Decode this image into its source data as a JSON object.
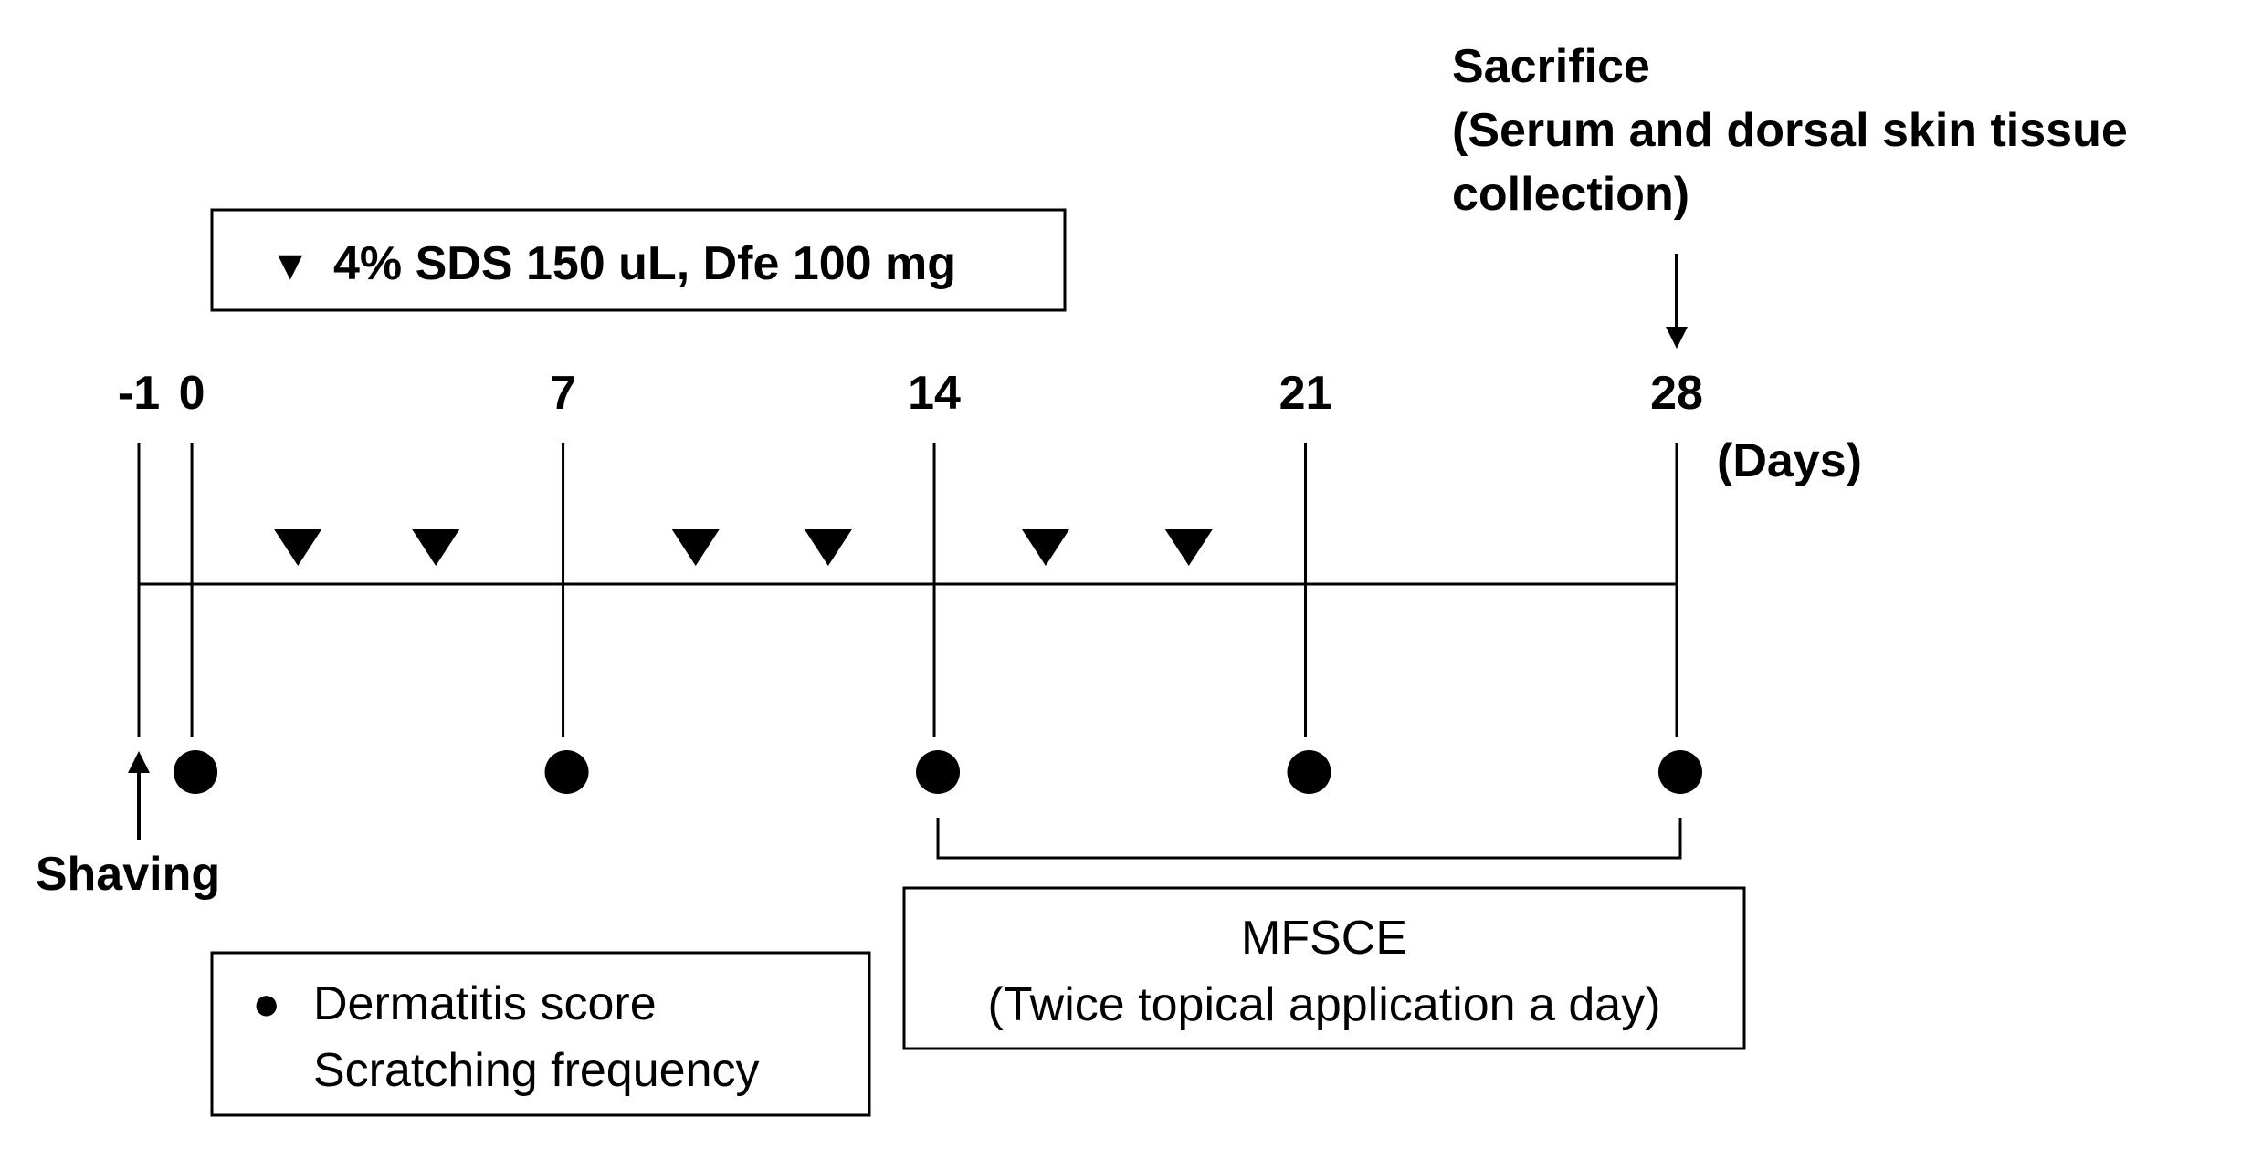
{
  "days_unit": "(Days)",
  "ticks": [
    {
      "day": -1,
      "label": "-1",
      "dot": false
    },
    {
      "day": 0,
      "label": "0",
      "dot": true
    },
    {
      "day": 7,
      "label": "7",
      "dot": true
    },
    {
      "day": 14,
      "label": "14",
      "dot": true
    },
    {
      "day": 21,
      "label": "21",
      "dot": true
    },
    {
      "day": 28,
      "label": "28",
      "dot": true
    }
  ],
  "treatment_days": [
    2,
    4.6,
    9.5,
    12,
    16.1,
    18.8
  ],
  "treatment_legend": {
    "symbol": "▼",
    "text": "4%  SDS 150 uL, Dfe 100 mg"
  },
  "sacrifice": {
    "day": 28,
    "lines": [
      "Sacrifice",
      "(Serum and dorsal skin tissue",
      "collection)"
    ]
  },
  "shaving": {
    "day": -1,
    "label": "Shaving"
  },
  "measurement_legend": {
    "symbol": "●",
    "lines": [
      "Dermatitis score",
      "Scratching frequency"
    ]
  },
  "mfsce": {
    "start_day": 14,
    "end_day": 28,
    "lines": [
      "MFSCE",
      "(Twice topical application a day)"
    ]
  }
}
